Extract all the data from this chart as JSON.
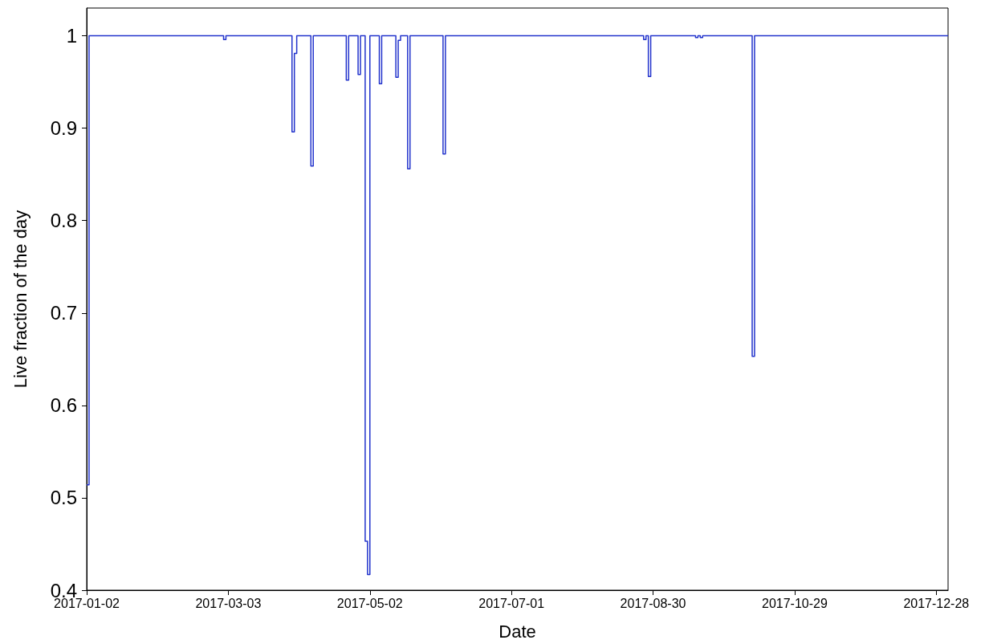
{
  "chart_data": {
    "type": "step",
    "xlabel": "Date",
    "ylabel": "Live fraction of the day",
    "x": [
      "2017-01-02",
      "2017-01-03",
      "2017-03-01",
      "2017-03-02",
      "2017-03-30",
      "2017-03-31",
      "2017-04-01",
      "2017-04-07",
      "2017-04-08",
      "2017-04-22",
      "2017-04-23",
      "2017-04-27",
      "2017-04-28",
      "2017-04-30",
      "2017-05-01",
      "2017-05-02",
      "2017-05-06",
      "2017-05-07",
      "2017-05-13",
      "2017-05-14",
      "2017-05-15",
      "2017-05-18",
      "2017-05-19",
      "2017-06-02",
      "2017-06-03",
      "2017-08-26",
      "2017-08-27",
      "2017-08-28",
      "2017-08-29",
      "2017-09-17",
      "2017-09-18",
      "2017-09-19",
      "2017-09-20",
      "2017-10-11",
      "2017-10-12",
      "2018-01-02"
    ],
    "series": [
      {
        "color": "#2233cc",
        "values": [
          0.514,
          1,
          0.996,
          1,
          0.896,
          0.981,
          1,
          0.859,
          1,
          0.952,
          1,
          0.958,
          1,
          0.453,
          0.417,
          1,
          0.948,
          1,
          0.955,
          0.995,
          1,
          0.856,
          1,
          0.872,
          1,
          0.996,
          1,
          0.956,
          1,
          0.998,
          1,
          0.998,
          1,
          0.653,
          1,
          1
        ]
      }
    ],
    "xlim": [
      "2017-01-02",
      "2018-01-02"
    ],
    "xticks": [
      "2017-01-02",
      "2017-03-03",
      "2017-05-02",
      "2017-07-01",
      "2017-08-30",
      "2017-10-29",
      "2017-12-28"
    ],
    "ylim": [
      0.4,
      1.03
    ],
    "yticks": [
      0.4,
      0.5,
      0.6,
      0.7,
      0.8,
      0.9,
      1
    ],
    "grid": false,
    "marker": "none",
    "line_style": "solid"
  }
}
